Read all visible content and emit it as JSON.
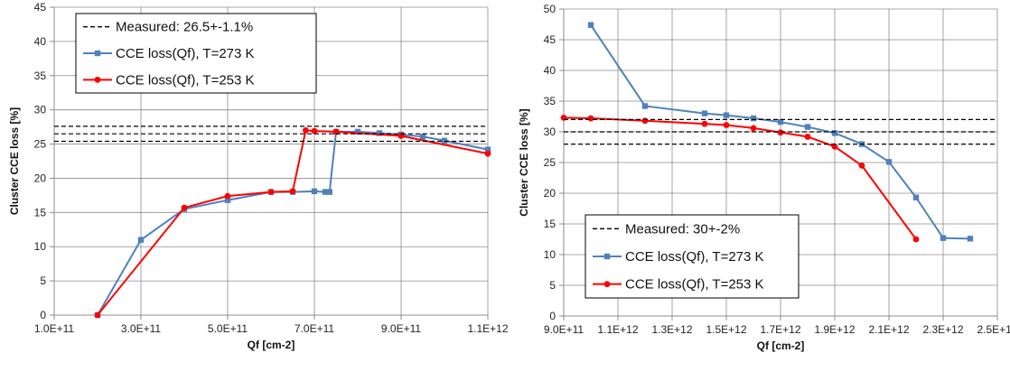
{
  "chart_data": [
    {
      "type": "line",
      "xlabel": "Qf [cm-2]",
      "ylabel": "Cluster CCE loss [%]",
      "xlim": [
        100000000000.0,
        1100000000000.0
      ],
      "ylim": [
        0,
        45
      ],
      "x_ticks": [
        {
          "value": 100000000000.0,
          "label": "1.0E+11"
        },
        {
          "value": 300000000000.0,
          "label": "3.0E+11"
        },
        {
          "value": 500000000000.0,
          "label": "5.0E+11"
        },
        {
          "value": 700000000000.0,
          "label": "7.0E+11"
        },
        {
          "value": 900000000000.0,
          "label": "9.0E+11"
        },
        {
          "value": 1100000000000.0,
          "label": "1.1E+12"
        }
      ],
      "y_ticks": [
        0,
        5,
        10,
        15,
        20,
        25,
        30,
        35,
        40,
        45
      ],
      "grid": true,
      "legend_position": "top-left",
      "series": [
        {
          "name": "CCE loss(Qf), T=273 K",
          "color": "#4F81BD",
          "marker": "square",
          "x": [
            200000000000.0,
            300000000000.0,
            400000000000.0,
            500000000000.0,
            600000000000.0,
            650000000000.0,
            700000000000.0,
            725000000000.0,
            735000000000.0,
            750000000000.0,
            800000000000.0,
            850000000000.0,
            900000000000.0,
            950000000000.0,
            1000000000000.0,
            1100000000000.0
          ],
          "y": [
            0,
            11.0,
            15.5,
            16.8,
            18.0,
            18.0,
            18.1,
            18.0,
            18.0,
            26.8,
            26.8,
            26.6,
            26.4,
            26.1,
            25.5,
            24.2
          ]
        },
        {
          "name": "CCE loss(Qf), T=253 K",
          "color": "#FF0000",
          "marker": "circle",
          "x": [
            200000000000.0,
            400000000000.0,
            500000000000.0,
            600000000000.0,
            650000000000.0,
            680000000000.0,
            700000000000.0,
            750000000000.0,
            900000000000.0,
            1100000000000.0
          ],
          "y": [
            0,
            15.7,
            17.4,
            18.0,
            18.1,
            27.0,
            26.9,
            26.8,
            26.2,
            23.6
          ]
        },
        {
          "name": "Measured: 26.5+-1.1%",
          "color": "#000000",
          "dashed": true,
          "hlines": [
            25.4,
            26.5,
            27.6
          ]
        }
      ],
      "legend_order": [
        2,
        0,
        1
      ]
    },
    {
      "type": "line",
      "xlabel": "Qf [cm-2]",
      "ylabel": "Cluster CCE loss [%]",
      "xlim": [
        900000000000.0,
        2500000000000.0
      ],
      "ylim": [
        0,
        50
      ],
      "x_ticks": [
        {
          "value": 900000000000.0,
          "label": "9.0E+11"
        },
        {
          "value": 1100000000000.0,
          "label": "1.1E+12"
        },
        {
          "value": 1300000000000.0,
          "label": "1.3E+12"
        },
        {
          "value": 1500000000000.0,
          "label": "1.5E+12"
        },
        {
          "value": 1700000000000.0,
          "label": "1.7E+12"
        },
        {
          "value": 1900000000000.0,
          "label": "1.9E+12"
        },
        {
          "value": 2100000000000.0,
          "label": "2.1E+12"
        },
        {
          "value": 2300000000000.0,
          "label": "2.3E+12"
        },
        {
          "value": 2500000000000.0,
          "label": "2.5E+12"
        }
      ],
      "y_ticks": [
        0,
        5,
        10,
        15,
        20,
        25,
        30,
        35,
        40,
        45,
        50
      ],
      "grid": true,
      "legend_position": "bottom-left",
      "series": [
        {
          "name": "CCE loss(Qf), T=273 K",
          "color": "#4F81BD",
          "marker": "square",
          "x": [
            1000000000000.0,
            1200000000000.0,
            1420000000000.0,
            1500000000000.0,
            1600000000000.0,
            1700000000000.0,
            1800000000000.0,
            1900000000000.0,
            2000000000000.0,
            2100000000000.0,
            2200000000000.0,
            2300000000000.0,
            2400000000000.0
          ],
          "y": [
            47.4,
            34.2,
            33.0,
            32.7,
            32.2,
            31.6,
            30.8,
            29.8,
            28.0,
            25.1,
            19.3,
            12.7,
            12.6
          ]
        },
        {
          "name": "CCE loss(Qf), T=253 K",
          "color": "#FF0000",
          "marker": "circle",
          "x": [
            900000000000.0,
            1000000000000.0,
            1200000000000.0,
            1420000000000.0,
            1500000000000.0,
            1600000000000.0,
            1700000000000.0,
            1800000000000.0,
            1900000000000.0,
            2000000000000.0,
            2200000000000.0
          ],
          "y": [
            32.3,
            32.2,
            31.8,
            31.3,
            31.1,
            30.6,
            29.9,
            29.2,
            27.6,
            24.5,
            12.5
          ]
        },
        {
          "name": "Measured: 30+-2%",
          "color": "#000000",
          "dashed": true,
          "hlines": [
            28,
            30,
            32
          ]
        }
      ],
      "legend_order": [
        2,
        0,
        1
      ]
    }
  ]
}
